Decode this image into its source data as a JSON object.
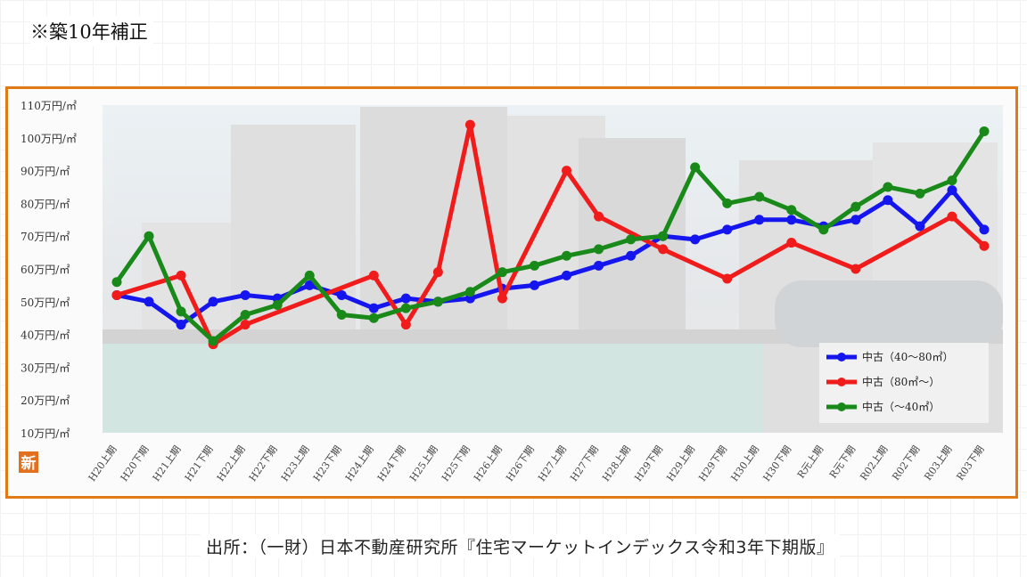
{
  "note": "※築10年補正",
  "source": "出所：（一財）日本不動産研究所『住宅マーケットインデックス令和3年下期版』",
  "logo_text": "新",
  "chart_data": {
    "type": "line",
    "title": "",
    "xlabel": "",
    "ylabel": "",
    "yunit": "万円/㎡",
    "ylim": [
      10,
      110
    ],
    "yticks": [
      "110万円/㎡",
      "100万円/㎡",
      "90万円/㎡",
      "80万円/㎡",
      "70万円/㎡",
      "60万円/㎡",
      "50万円/㎡",
      "40万円/㎡",
      "30万円/㎡",
      "20万円/㎡",
      "10万円/㎡"
    ],
    "ytick_values": [
      110,
      100,
      90,
      80,
      70,
      60,
      50,
      40,
      30,
      20,
      10
    ],
    "categories": [
      "H20上期",
      "H20下期",
      "H21上期",
      "H21下期",
      "H22上期",
      "H22下期",
      "H23上期",
      "H23下期",
      "H24上期",
      "H24下期",
      "H25上期",
      "H25下期",
      "H26上期",
      "H26下期",
      "H27上期",
      "H27下期",
      "H28上期",
      "H29下期",
      "H29上期",
      "H29下期",
      "H30上期",
      "H30下期",
      "R元上期",
      "R元下期",
      "R02上期",
      "R02下期",
      "R03上期",
      "R03下期"
    ],
    "legend_position": "bottom-right",
    "series": [
      {
        "name": "中古（40～80㎡）",
        "color": "#1515ee",
        "values": [
          52,
          50,
          43,
          50,
          52,
          51,
          55,
          52,
          48,
          51,
          50,
          51,
          54,
          55,
          58,
          61,
          64,
          70,
          69,
          72,
          75,
          75,
          73,
          75,
          81,
          73,
          84,
          72
        ]
      },
      {
        "name": "中古（80㎡～）",
        "color": "#f01c1c",
        "values": [
          52,
          null,
          58,
          37,
          43,
          null,
          null,
          null,
          58,
          43,
          59,
          104,
          51,
          null,
          90,
          76,
          null,
          66,
          null,
          57,
          null,
          68,
          null,
          60,
          null,
          null,
          76,
          67
        ]
      },
      {
        "name": "中古（～40㎡）",
        "color": "#198a19",
        "values": [
          56,
          70,
          47,
          38,
          46,
          49,
          58,
          46,
          45,
          48,
          50,
          53,
          59,
          61,
          64,
          66,
          69,
          70,
          91,
          80,
          82,
          78,
          72,
          79,
          85,
          83,
          87,
          102
        ]
      }
    ]
  }
}
